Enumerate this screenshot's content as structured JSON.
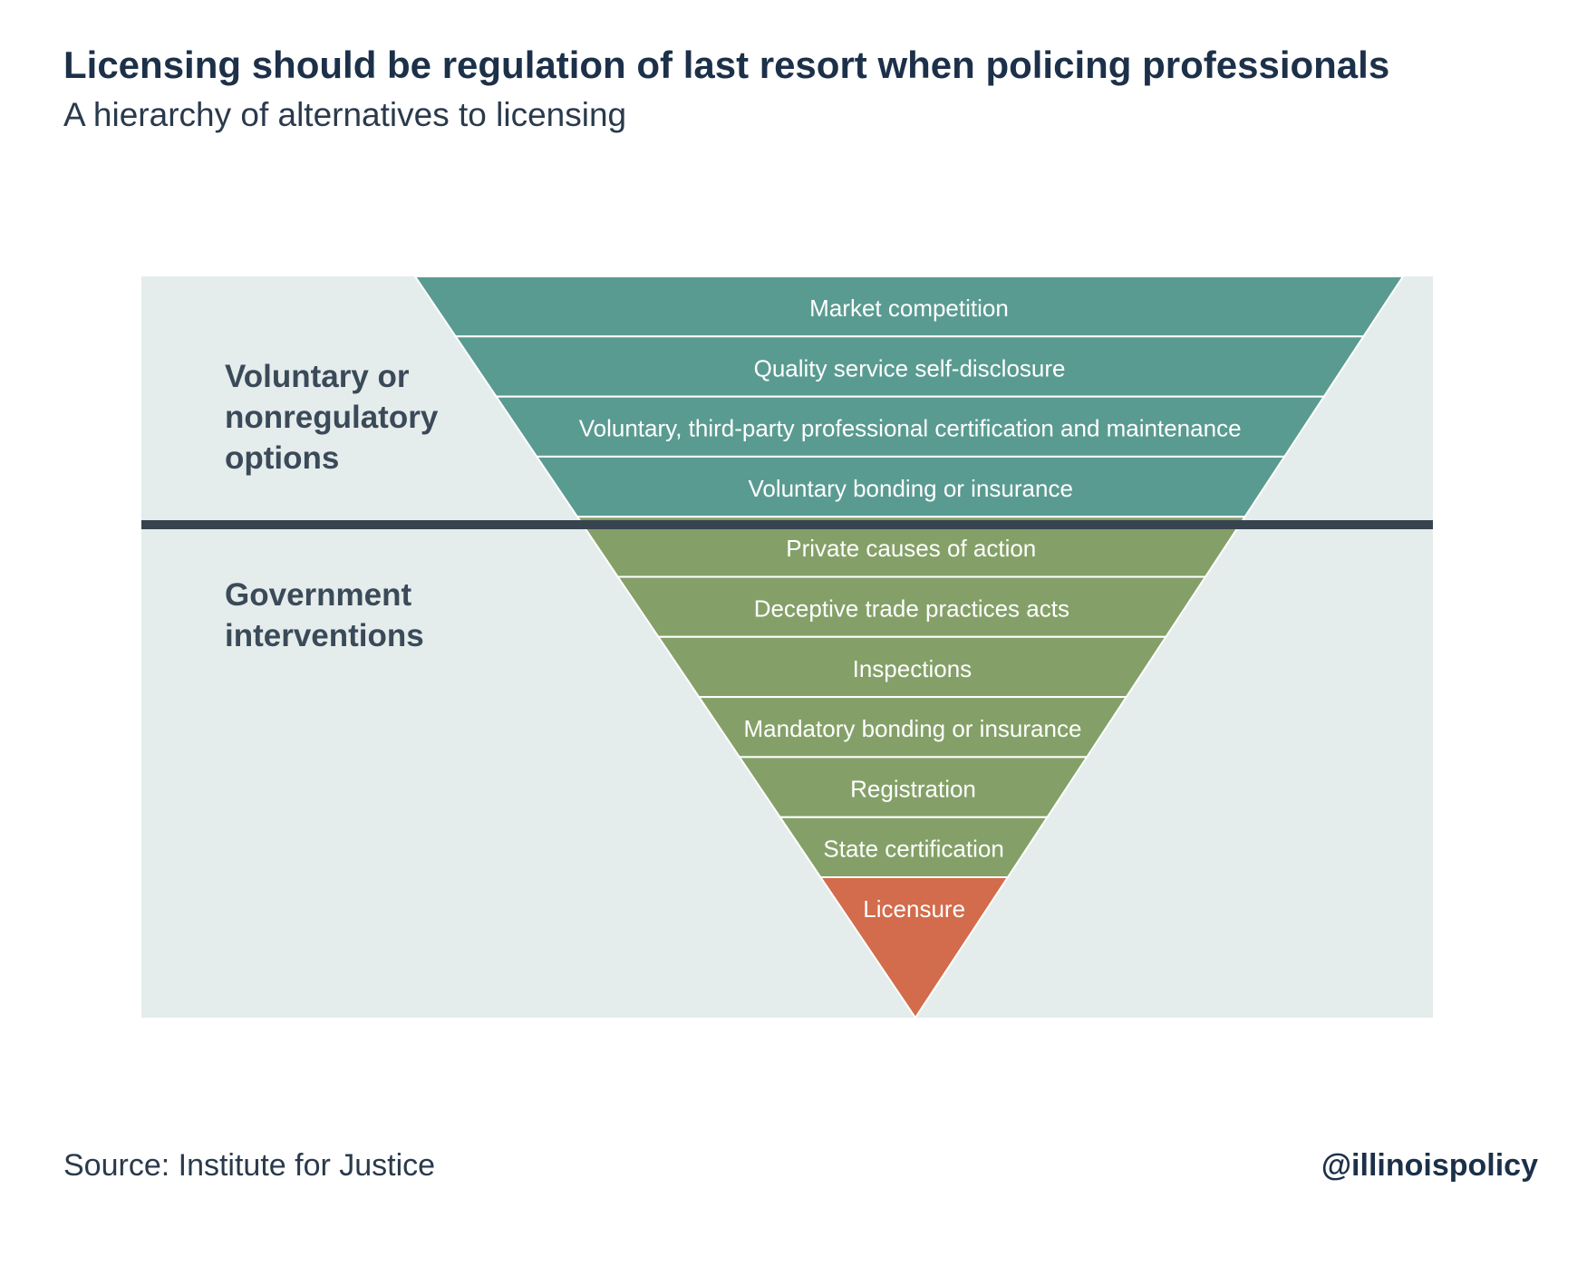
{
  "title": "Licensing should be regulation of last resort when policing professionals",
  "subtitle": "A hierarchy of alternatives to licensing",
  "groups": {
    "voluntary": "Voluntary or nonregulatory options",
    "government": "Government interventions"
  },
  "pyramid": {
    "bands": [
      {
        "label": "Market competition",
        "group": "voluntary"
      },
      {
        "label": "Quality service self-disclosure",
        "group": "voluntary"
      },
      {
        "label": "Voluntary, third-party professional certification and maintenance",
        "group": "voluntary"
      },
      {
        "label": "Voluntary bonding or insurance",
        "group": "voluntary"
      },
      {
        "label": "Private causes of action",
        "group": "government"
      },
      {
        "label": "Deceptive trade practices acts",
        "group": "government"
      },
      {
        "label": "Inspections",
        "group": "government"
      },
      {
        "label": "Mandatory bonding or insurance",
        "group": "government"
      },
      {
        "label": "Registration",
        "group": "government"
      },
      {
        "label": "State certification",
        "group": "government"
      },
      {
        "label": "Licensure",
        "group": "licensure"
      }
    ]
  },
  "colors": {
    "voluntary": "#5a9b91",
    "government": "#84a068",
    "licensure": "#d26c4c",
    "panel": "#e5ecec",
    "divider": "#37444f",
    "text": "#1c3049"
  },
  "source": "Source:  Institute for Justice",
  "handle": "@illinoispolicy"
}
